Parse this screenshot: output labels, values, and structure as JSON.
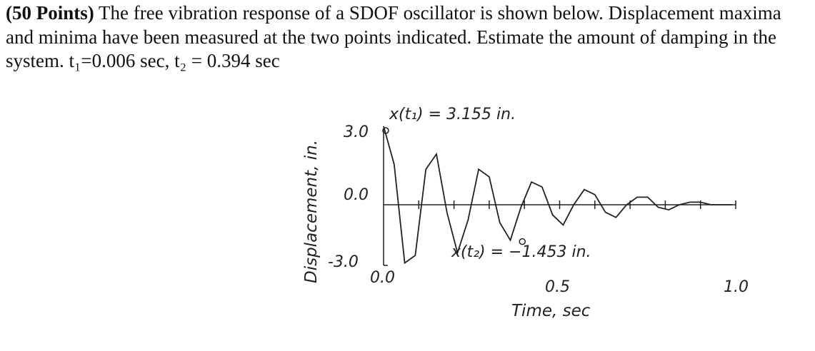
{
  "problem": {
    "points_label": "(50 Points)",
    "statement": " The free vibration response of a SDOF oscillator is shown below. Displacement maxima and minima have been measured at the two points indicated. Estimate the amount of damping in the system. ",
    "t1": "t₁=0.006 sec,",
    "t2": " t₂ = 0.394 sec"
  },
  "chart_data": {
    "type": "line",
    "title": "",
    "xlabel": "Time, sec",
    "ylabel": "Displacement, in.",
    "xlim": [
      0.0,
      1.0
    ],
    "ylim": [
      -3.0,
      3.0
    ],
    "x_ticks": [
      "0.0",
      "0.5",
      "1.0"
    ],
    "y_ticks": [
      "3.0",
      "0.0",
      "-3.0"
    ],
    "series": [
      {
        "x": [
          0.0,
          0.03,
          0.06,
          0.09,
          0.12,
          0.15,
          0.18,
          0.21,
          0.24,
          0.27,
          0.3,
          0.33,
          0.36,
          0.39,
          0.42,
          0.45,
          0.48,
          0.51,
          0.54,
          0.57,
          0.6,
          0.63,
          0.66,
          0.69,
          0.72,
          0.75,
          0.78,
          0.81,
          0.84,
          0.87,
          0.9,
          0.93,
          0.96,
          0.99
        ],
        "y": [
          3.1,
          1.6,
          -2.3,
          -2.0,
          1.4,
          2.0,
          -0.3,
          -1.9,
          -0.6,
          1.4,
          1.1,
          -0.7,
          -1.4,
          -0.1,
          0.9,
          0.7,
          -0.4,
          -0.8,
          0.0,
          0.6,
          0.4,
          -0.3,
          -0.5,
          0.0,
          0.3,
          0.3,
          -0.1,
          -0.2,
          0.0,
          0.1,
          0.1,
          0.0,
          0.0,
          0.0
        ]
      }
    ],
    "annotations": [
      {
        "label": "x(t₁) = 3.155 in.",
        "x": 0.006,
        "y": 3.155
      },
      {
        "label": "x(t₂) = −1.453 in.",
        "x": 0.394,
        "y": -1.453
      }
    ]
  }
}
